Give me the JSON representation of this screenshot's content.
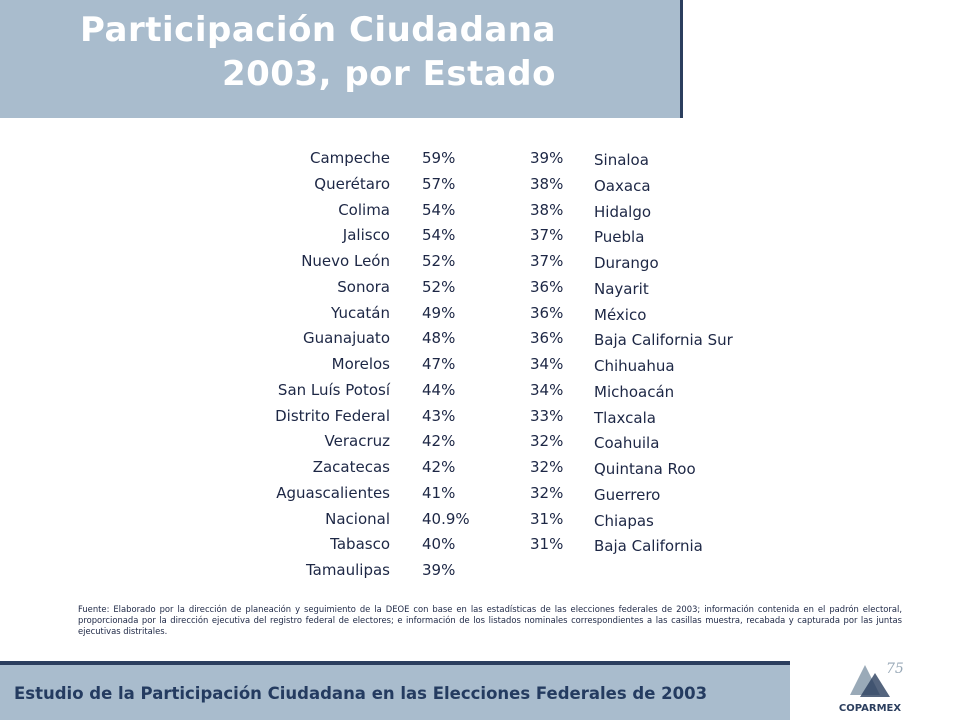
{
  "header": {
    "title_lines": [
      "Participación Ciudadana",
      "2003, por Estado"
    ]
  },
  "table": {
    "left": [
      [
        "Campeche",
        "59%"
      ],
      [
        "Querétaro",
        "57%"
      ],
      [
        "Colima",
        "54%"
      ],
      [
        "Jalisco",
        "54%"
      ],
      [
        "Nuevo León",
        "52%"
      ],
      [
        "Sonora",
        "52%"
      ],
      [
        "Yucatán",
        "49%"
      ],
      [
        "Guanajuato",
        "48%"
      ],
      [
        "Morelos",
        "47%"
      ],
      [
        "San Luís Potosí",
        "44%"
      ],
      [
        "Distrito Federal",
        "43%"
      ],
      [
        "Veracruz",
        "42%"
      ],
      [
        "Zacatecas",
        "42%"
      ],
      [
        "Aguascalientes",
        "41%"
      ],
      [
        "Nacional",
        "40.9%"
      ],
      [
        "Tabasco",
        "40%"
      ],
      [
        "Tamaulipas",
        "39%"
      ]
    ],
    "right": [
      [
        "Sinaloa",
        "39%"
      ],
      [
        "Oaxaca",
        "38%"
      ],
      [
        "Hidalgo",
        "38%"
      ],
      [
        "Puebla",
        "37%"
      ],
      [
        "Durango",
        "37%"
      ],
      [
        "Nayarit",
        "36%"
      ],
      [
        "México",
        "36%"
      ],
      [
        "Baja California Sur",
        "36%"
      ],
      [
        "Chihuahua",
        "34%"
      ],
      [
        "Michoacán",
        "34%"
      ],
      [
        "Tlaxcala",
        "33%"
      ],
      [
        "Coahuila",
        "32%"
      ],
      [
        "Quintana Roo",
        "32%"
      ],
      [
        "Guerrero",
        "32%"
      ],
      [
        "Chiapas",
        "31%"
      ],
      [
        "Baja California",
        "31%"
      ]
    ]
  },
  "source": "Fuente: Elaborado por la dirección de planeación y seguimiento de la DEOE con base en las estadísticas de las elecciones federales de 2003; información contenida en el padrón electoral, proporcionada por la dirección ejecutiva del registro federal de electores; e información de los listados nominales correspondientes a las casillas muestra, recabada y capturada por las juntas ejecutivas distritales.",
  "footer": {
    "title": "Estudio de la Participación Ciudadana en las Elecciones Federales de 2003",
    "logo": "COPARMEX",
    "logo_badge": "75"
  }
}
